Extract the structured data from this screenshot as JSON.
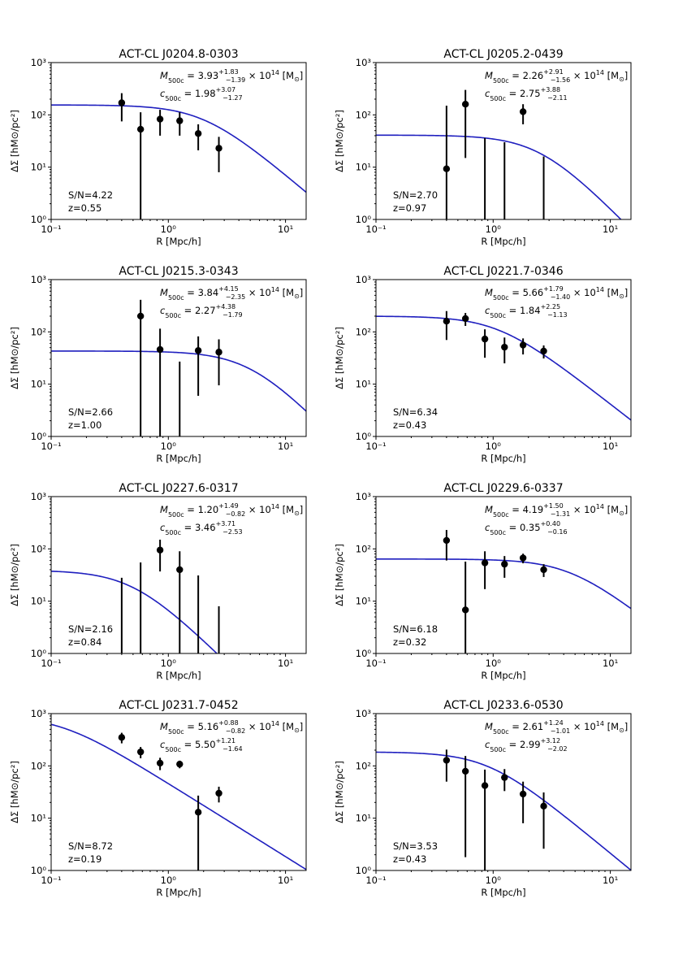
{
  "chart_data": {
    "type": "scatter",
    "xlabel": "R [Mpc/h]",
    "ylabel": "ΔΣ [hM⊙/pc²]",
    "x_scale": "log",
    "y_scale": "log",
    "xlim": [
      0.1,
      15
    ],
    "ylim": [
      1,
      1000
    ],
    "x_tick_labels": [
      "10⁻¹",
      "10⁰",
      "10¹"
    ],
    "y_tick_labels": [
      "10⁰",
      "10¹",
      "10²",
      "10³"
    ],
    "panels": [
      {
        "title": "ACT-CL J0204.8-0303",
        "mass": "3.93",
        "mass_up": "+1.83",
        "mass_lo": "−1.39",
        "conc": "1.98",
        "conc_up": "+3.07",
        "conc_lo": "−1.27",
        "sn": "S/N=4.22",
        "z": "z=0.55",
        "model": {
          "amp": 155,
          "rs": 2.0,
          "slope": 1.9
        },
        "points": [
          {
            "x": 0.4,
            "y": 170,
            "lo": 75,
            "hi": 260
          },
          {
            "x": 0.58,
            "y": 53,
            "lo": 1,
            "hi": 112
          },
          {
            "x": 0.85,
            "y": 83,
            "lo": 40,
            "hi": 125
          },
          {
            "x": 1.25,
            "y": 77,
            "lo": 40,
            "hi": 112
          },
          {
            "x": 1.8,
            "y": 44,
            "lo": 21,
            "hi": 66
          },
          {
            "x": 2.7,
            "y": 23,
            "lo": 8,
            "hi": 38
          }
        ]
      },
      {
        "title": "ACT-CL J0205.2-0439",
        "mass": "2.26",
        "mass_up": "+2.91",
        "mass_lo": "−1.56",
        "conc": "2.75",
        "conc_up": "+3.88",
        "conc_lo": "−2.11",
        "sn": "S/N=2.70",
        "z": "z=0.97",
        "model": {
          "amp": 41,
          "rs": 2.5,
          "slope": 2.3
        },
        "points": [
          {
            "x": 0.4,
            "y": 9.3,
            "lo": 1,
            "hi": 150
          },
          {
            "x": 0.58,
            "y": 160,
            "lo": 15,
            "hi": 300
          },
          {
            "x": 0.85,
            "y": null,
            "lo": 1,
            "hi": 36
          },
          {
            "x": 1.25,
            "y": null,
            "lo": 1,
            "hi": 30
          },
          {
            "x": 1.8,
            "y": 115,
            "lo": 66,
            "hi": 160
          },
          {
            "x": 2.7,
            "y": null,
            "lo": 1,
            "hi": 16
          }
        ]
      },
      {
        "title": "ACT-CL J0215.3-0343",
        "mass": "3.84",
        "mass_up": "+4.15",
        "mass_lo": "−2.35",
        "conc": "2.27",
        "conc_up": "+4.38",
        "conc_lo": "−1.79",
        "sn": "S/N=2.66",
        "z": "z=1.00",
        "model": {
          "amp": 43,
          "rs": 5.0,
          "slope": 2.3
        },
        "points": [
          {
            "x": 0.58,
            "y": 200,
            "lo": 1,
            "hi": 410
          },
          {
            "x": 0.85,
            "y": 46,
            "lo": 1,
            "hi": 115
          },
          {
            "x": 1.25,
            "y": null,
            "lo": 1,
            "hi": 27
          },
          {
            "x": 1.8,
            "y": 44,
            "lo": 6,
            "hi": 82
          },
          {
            "x": 2.7,
            "y": 41,
            "lo": 9.5,
            "hi": 72
          }
        ]
      },
      {
        "title": "ACT-CL J0221.7-0346",
        "mass": "5.66",
        "mass_up": "+1.79",
        "mass_lo": "−1.40",
        "conc": "1.84",
        "conc_up": "+2.25",
        "conc_lo": "−1.13",
        "sn": "S/N=6.34",
        "z": "z=0.43",
        "model": {
          "amp": 200,
          "rs": 1.1,
          "slope": 1.75
        },
        "points": [
          {
            "x": 0.4,
            "y": 160,
            "lo": 70,
            "hi": 250
          },
          {
            "x": 0.58,
            "y": 180,
            "lo": 130,
            "hi": 230
          },
          {
            "x": 0.85,
            "y": 73,
            "lo": 32,
            "hi": 112
          },
          {
            "x": 1.25,
            "y": 51,
            "lo": 25,
            "hi": 78
          },
          {
            "x": 1.8,
            "y": 56,
            "lo": 37,
            "hi": 75
          },
          {
            "x": 2.7,
            "y": 43,
            "lo": 31,
            "hi": 55
          }
        ]
      },
      {
        "title": "ACT-CL J0227.6-0317",
        "mass": "1.20",
        "mass_up": "+1.49",
        "mass_lo": "−0.82",
        "conc": "3.46",
        "conc_up": "+3.71",
        "conc_lo": "−2.53",
        "sn": "S/N=2.16",
        "z": "z=0.84",
        "model": {
          "amp": 39,
          "rs": 0.5,
          "slope": 2.2
        },
        "points": [
          {
            "x": 0.4,
            "y": null,
            "lo": 1,
            "hi": 28
          },
          {
            "x": 0.58,
            "y": null,
            "lo": 1,
            "hi": 55
          },
          {
            "x": 0.85,
            "y": 95,
            "lo": 37,
            "hi": 150
          },
          {
            "x": 1.25,
            "y": 40,
            "lo": 1,
            "hi": 90
          },
          {
            "x": 1.8,
            "y": null,
            "lo": 1,
            "hi": 31
          },
          {
            "x": 2.7,
            "y": null,
            "lo": 1,
            "hi": 8
          }
        ]
      },
      {
        "title": "ACT-CL J0229.6-0337",
        "mass": "4.19",
        "mass_up": "+1.50",
        "mass_lo": "−1.31",
        "conc": "0.35",
        "conc_up": "+0.40",
        "conc_lo": "−0.16",
        "sn": "S/N=6.18",
        "z": "z=0.32",
        "model": {
          "amp": 64,
          "rs": 4.5,
          "slope": 1.75
        },
        "points": [
          {
            "x": 0.4,
            "y": 145,
            "lo": 60,
            "hi": 230
          },
          {
            "x": 0.58,
            "y": 6.8,
            "lo": 1,
            "hi": 57
          },
          {
            "x": 0.85,
            "y": 54,
            "lo": 17,
            "hi": 90
          },
          {
            "x": 1.25,
            "y": 51,
            "lo": 28,
            "hi": 73
          },
          {
            "x": 1.8,
            "y": 67,
            "lo": 53,
            "hi": 81
          },
          {
            "x": 2.7,
            "y": 40,
            "lo": 29,
            "hi": 51
          }
        ]
      },
      {
        "title": "ACT-CL J0231.7-0452",
        "mass": "5.16",
        "mass_up": "+0.88",
        "mass_lo": "−0.82",
        "conc": "5.50",
        "conc_up": "+1.21",
        "conc_lo": "−1.64",
        "sn": "S/N=8.72",
        "z": "z=0.19",
        "model": {
          "amp": 900,
          "rs": 0.12,
          "slope": 1.4
        },
        "points": [
          {
            "x": 0.4,
            "y": 350,
            "lo": 270,
            "hi": 430
          },
          {
            "x": 0.58,
            "y": 185,
            "lo": 140,
            "hi": 230
          },
          {
            "x": 0.85,
            "y": 113,
            "lo": 83,
            "hi": 143
          },
          {
            "x": 1.25,
            "y": 108,
            "lo": 90,
            "hi": 126
          },
          {
            "x": 1.8,
            "y": 13,
            "lo": 1,
            "hi": 27
          },
          {
            "x": 2.7,
            "y": 30,
            "lo": 20,
            "hi": 40
          }
        ]
      },
      {
        "title": "ACT-CL J0233.6-0530",
        "mass": "2.61",
        "mass_up": "+1.24",
        "mass_lo": "−1.01",
        "conc": "2.99",
        "conc_up": "+3.12",
        "conc_lo": "−2.02",
        "sn": "S/N=3.53",
        "z": "z=0.43",
        "model": {
          "amp": 185,
          "rs": 0.9,
          "slope": 1.85
        },
        "points": [
          {
            "x": 0.4,
            "y": 128,
            "lo": 50,
            "hi": 205
          },
          {
            "x": 0.58,
            "y": 79,
            "lo": 1.8,
            "hi": 155
          },
          {
            "x": 0.85,
            "y": 42,
            "lo": 1,
            "hi": 85
          },
          {
            "x": 1.25,
            "y": 60,
            "lo": 33,
            "hi": 87
          },
          {
            "x": 1.8,
            "y": 29,
            "lo": 8,
            "hi": 50
          },
          {
            "x": 2.7,
            "y": 17,
            "lo": 2.6,
            "hi": 31
          }
        ]
      }
    ]
  }
}
